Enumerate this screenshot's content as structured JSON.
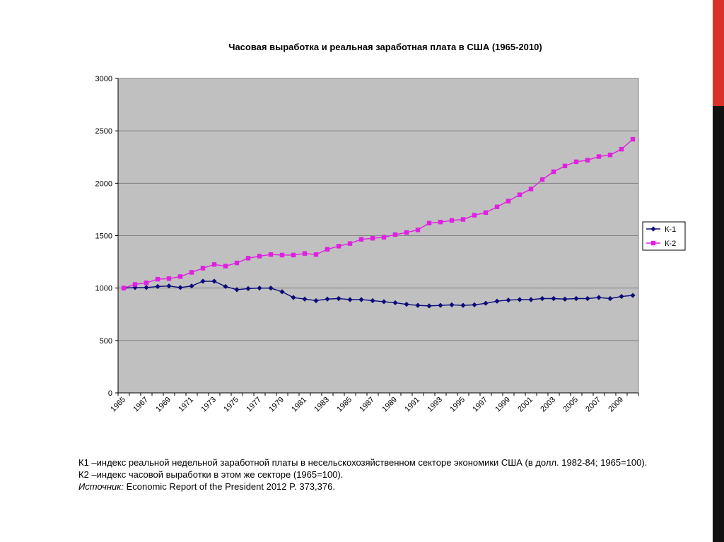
{
  "accent_colors": {
    "top": "#d9322b",
    "bottom": "#111111"
  },
  "chart_data": {
    "type": "line",
    "title": "Часовая выработка и реальная заработная плата в США (1965-2010)",
    "xlabel": "",
    "ylabel": "",
    "x": [
      1965,
      1966,
      1967,
      1968,
      1969,
      1970,
      1971,
      1972,
      1973,
      1974,
      1975,
      1976,
      1977,
      1978,
      1979,
      1980,
      1981,
      1982,
      1983,
      1984,
      1985,
      1986,
      1987,
      1988,
      1989,
      1990,
      1991,
      1992,
      1993,
      1994,
      1995,
      1996,
      1997,
      1998,
      1999,
      2000,
      2001,
      2002,
      2003,
      2004,
      2005,
      2006,
      2007,
      2008,
      2009,
      2010
    ],
    "x_tick_labels": [
      "1965",
      "1967",
      "1969",
      "1971",
      "1973",
      "1975",
      "1977",
      "1979",
      "1981",
      "1983",
      "1985",
      "1987",
      "1989",
      "1991",
      "1993",
      "1995",
      "1997",
      "1999",
      "2001",
      "2003",
      "2005",
      "2007",
      "2009"
    ],
    "ylim": [
      0,
      3000
    ],
    "y_ticks": [
      0,
      500,
      1000,
      1500,
      2000,
      2500,
      3000
    ],
    "grid": true,
    "plot_bg": "#c0c0c0",
    "legend_position": "right",
    "series": [
      {
        "name": "К-1",
        "color": "#0a0a7a",
        "marker": "diamond",
        "values": [
          1000,
          1005,
          1005,
          1015,
          1020,
          1005,
          1020,
          1065,
          1065,
          1015,
          985,
          995,
          1000,
          1000,
          965,
          910,
          895,
          880,
          895,
          900,
          890,
          890,
          880,
          870,
          860,
          845,
          835,
          830,
          835,
          840,
          835,
          840,
          855,
          875,
          885,
          890,
          890,
          900,
          900,
          895,
          900,
          900,
          910,
          900,
          920,
          930
        ]
      },
      {
        "name": "К-2",
        "color": "#e020e0",
        "marker": "square",
        "values": [
          1000,
          1035,
          1050,
          1085,
          1090,
          1110,
          1150,
          1190,
          1225,
          1210,
          1240,
          1285,
          1305,
          1320,
          1315,
          1315,
          1330,
          1320,
          1370,
          1400,
          1425,
          1465,
          1475,
          1485,
          1510,
          1530,
          1555,
          1620,
          1630,
          1645,
          1655,
          1695,
          1720,
          1775,
          1830,
          1890,
          1945,
          2035,
          2110,
          2165,
          2205,
          2220,
          2255,
          2270,
          2325,
          2420
        ]
      }
    ]
  },
  "caption": {
    "line1": "К1 –индекс реальной недельной заработной платы в несельскохозяйственном секторе экономики США (в долл. 1982-84; 1965=100).",
    "line2": "К2 –индекс часовой выработки в этом же секторе (1965=100).",
    "source_label": "Источник:",
    "source_text": " Economic Report of the President 2012 P. 373,376."
  }
}
